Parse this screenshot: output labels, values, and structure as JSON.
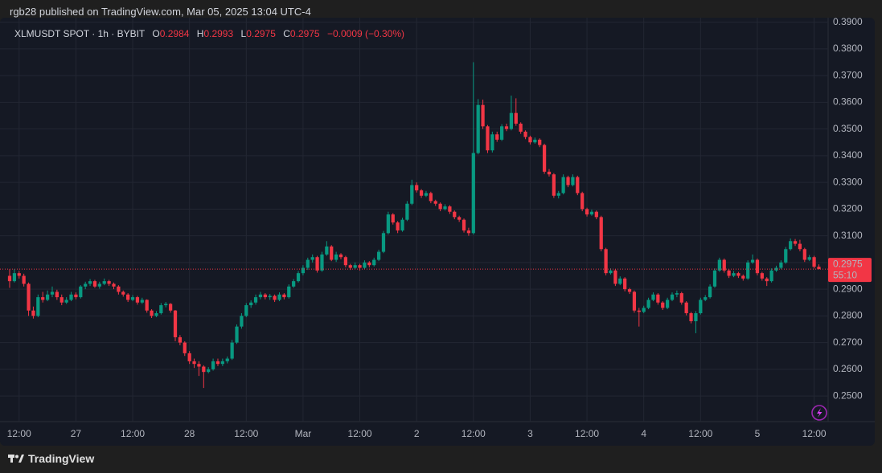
{
  "header": "rgb28 published on TradingView.com, Mar 05, 2025 13:04 UTC-4",
  "footer_logo": "TradingView",
  "chart_data": {
    "type": "candlestick",
    "symbol": "XLMUSDT SPOT · 1h · BYBIT",
    "ohlc_labels": [
      "O",
      "H",
      "L",
      "C"
    ],
    "change": "−0.0009 (−0.30%)",
    "countdown": "55:10",
    "up_color": "#089981",
    "down_color": "#f23645",
    "grid": true,
    "ylim": [
      0.2404,
      0.3917
    ],
    "yticks": [
      {
        "value": 0.25,
        "label": "0.2500"
      },
      {
        "value": 0.26,
        "label": "0.2600"
      },
      {
        "value": 0.27,
        "label": "0.2700"
      },
      {
        "value": 0.28,
        "label": "0.2800"
      },
      {
        "value": 0.29,
        "label": "0.2900"
      },
      {
        "value": 0.3,
        "label": "0.3000"
      },
      {
        "value": 0.31,
        "label": "0.3100"
      },
      {
        "value": 0.32,
        "label": "0.3200"
      },
      {
        "value": 0.33,
        "label": "0.3300"
      },
      {
        "value": 0.34,
        "label": "0.3400"
      },
      {
        "value": 0.35,
        "label": "0.3500"
      },
      {
        "value": 0.36,
        "label": "0.3600"
      },
      {
        "value": 0.37,
        "label": "0.3700"
      },
      {
        "value": 0.38,
        "label": "0.3800"
      },
      {
        "value": 0.39,
        "label": "0.3900"
      }
    ],
    "xlim": [
      -2.04,
      172.96
    ],
    "xticks": [
      {
        "value": 2,
        "label": "12:00"
      },
      {
        "value": 14,
        "label": "27"
      },
      {
        "value": 26,
        "label": "12:00"
      },
      {
        "value": 38,
        "label": "28"
      },
      {
        "value": 50,
        "label": "12:00"
      },
      {
        "value": 62,
        "label": "Mar"
      },
      {
        "value": 74,
        "label": "12:00"
      },
      {
        "value": 86,
        "label": "2"
      },
      {
        "value": 98,
        "label": "12:00"
      },
      {
        "value": 110,
        "label": "3"
      },
      {
        "value": 122,
        "label": "12:00"
      },
      {
        "value": 134,
        "label": "4"
      },
      {
        "value": 146,
        "label": "12:00"
      },
      {
        "value": 158,
        "label": "5"
      },
      {
        "value": 170,
        "label": "12:00"
      }
    ],
    "candles": [
      [
        0.295,
        0.2975,
        0.2905,
        0.293
      ],
      [
        0.293,
        0.2975,
        0.2925,
        0.296
      ],
      [
        0.296,
        0.2968,
        0.294,
        0.295
      ],
      [
        0.295,
        0.2958,
        0.291,
        0.292
      ],
      [
        0.292,
        0.2925,
        0.28,
        0.282
      ],
      [
        0.282,
        0.2835,
        0.279,
        0.28
      ],
      [
        0.28,
        0.288,
        0.2795,
        0.287
      ],
      [
        0.287,
        0.289,
        0.285,
        0.286
      ],
      [
        0.286,
        0.2895,
        0.2855,
        0.288
      ],
      [
        0.288,
        0.291,
        0.287,
        0.289
      ],
      [
        0.289,
        0.2898,
        0.286,
        0.287
      ],
      [
        0.287,
        0.288,
        0.284,
        0.285
      ],
      [
        0.285,
        0.287,
        0.2845,
        0.286
      ],
      [
        0.286,
        0.289,
        0.2855,
        0.288
      ],
      [
        0.288,
        0.2888,
        0.2862,
        0.287
      ],
      [
        0.287,
        0.2915,
        0.2865,
        0.291
      ],
      [
        0.291,
        0.2928,
        0.29,
        0.292
      ],
      [
        0.292,
        0.2938,
        0.2912,
        0.293
      ],
      [
        0.293,
        0.2935,
        0.2905,
        0.291
      ],
      [
        0.291,
        0.2928,
        0.2902,
        0.292
      ],
      [
        0.292,
        0.294,
        0.2915,
        0.293
      ],
      [
        0.293,
        0.2935,
        0.2912,
        0.292
      ],
      [
        0.292,
        0.2925,
        0.29,
        0.291
      ],
      [
        0.291,
        0.2915,
        0.288,
        0.289
      ],
      [
        0.289,
        0.2895,
        0.2872,
        0.288
      ],
      [
        0.288,
        0.2885,
        0.2852,
        0.286
      ],
      [
        0.286,
        0.2878,
        0.2855,
        0.287
      ],
      [
        0.287,
        0.2875,
        0.2842,
        0.285
      ],
      [
        0.285,
        0.2868,
        0.2845,
        0.286
      ],
      [
        0.286,
        0.2862,
        0.2812,
        0.282
      ],
      [
        0.282,
        0.2825,
        0.2792,
        0.28
      ],
      [
        0.28,
        0.2818,
        0.2795,
        0.281
      ],
      [
        0.281,
        0.2848,
        0.2805,
        0.284
      ],
      [
        0.284,
        0.2852,
        0.2832,
        0.2845
      ],
      [
        0.2845,
        0.2848,
        0.2812,
        0.282
      ],
      [
        0.282,
        0.2822,
        0.2705,
        0.272
      ],
      [
        0.272,
        0.2728,
        0.269,
        0.27
      ],
      [
        0.27,
        0.2705,
        0.265,
        0.266
      ],
      [
        0.266,
        0.2668,
        0.262,
        0.263
      ],
      [
        0.263,
        0.264,
        0.2605,
        0.262
      ],
      [
        0.262,
        0.263,
        0.2575,
        0.261
      ],
      [
        0.261,
        0.2615,
        0.253,
        0.259
      ],
      [
        0.259,
        0.2608,
        0.2585,
        0.26
      ],
      [
        0.26,
        0.264,
        0.2595,
        0.263
      ],
      [
        0.263,
        0.264,
        0.2612,
        0.262
      ],
      [
        0.262,
        0.264,
        0.2612,
        0.263
      ],
      [
        0.263,
        0.2648,
        0.2622,
        0.264
      ],
      [
        0.264,
        0.271,
        0.2635,
        0.27
      ],
      [
        0.27,
        0.2768,
        0.2695,
        0.276
      ],
      [
        0.276,
        0.281,
        0.2752,
        0.28
      ],
      [
        0.28,
        0.2848,
        0.2795,
        0.284
      ],
      [
        0.284,
        0.2858,
        0.283,
        0.285
      ],
      [
        0.285,
        0.288,
        0.2842,
        0.287
      ],
      [
        0.287,
        0.289,
        0.2862,
        0.288
      ],
      [
        0.288,
        0.2885,
        0.2862,
        0.287
      ],
      [
        0.287,
        0.2882,
        0.286,
        0.2875
      ],
      [
        0.2875,
        0.288,
        0.2852,
        0.286
      ],
      [
        0.286,
        0.2888,
        0.2855,
        0.288
      ],
      [
        0.288,
        0.2885,
        0.2862,
        0.287
      ],
      [
        0.287,
        0.2918,
        0.2865,
        0.291
      ],
      [
        0.291,
        0.2938,
        0.2905,
        0.293
      ],
      [
        0.293,
        0.2968,
        0.2925,
        0.296
      ],
      [
        0.296,
        0.299,
        0.2952,
        0.298
      ],
      [
        0.298,
        0.3018,
        0.2972,
        0.301
      ],
      [
        0.301,
        0.303,
        0.3,
        0.302
      ],
      [
        0.302,
        0.3025,
        0.2962,
        0.297
      ],
      [
        0.297,
        0.304,
        0.2965,
        0.303
      ],
      [
        0.303,
        0.308,
        0.3025,
        0.306
      ],
      [
        0.306,
        0.3065,
        0.3005,
        0.301
      ],
      [
        0.301,
        0.304,
        0.3002,
        0.303
      ],
      [
        0.303,
        0.3035,
        0.3012,
        0.302
      ],
      [
        0.302,
        0.3025,
        0.2982,
        0.299
      ],
      [
        0.299,
        0.2995,
        0.2972,
        0.298
      ],
      [
        0.298,
        0.3,
        0.2975,
        0.299
      ],
      [
        0.299,
        0.2995,
        0.297,
        0.298
      ],
      [
        0.298,
        0.3008,
        0.2975,
        0.3
      ],
      [
        0.3,
        0.3005,
        0.2982,
        0.299
      ],
      [
        0.299,
        0.3018,
        0.2985,
        0.301
      ],
      [
        0.301,
        0.3048,
        0.3005,
        0.304
      ],
      [
        0.304,
        0.3118,
        0.3035,
        0.311
      ],
      [
        0.311,
        0.319,
        0.3105,
        0.318
      ],
      [
        0.318,
        0.3185,
        0.3142,
        0.315
      ],
      [
        0.315,
        0.3155,
        0.311,
        0.312
      ],
      [
        0.312,
        0.3168,
        0.3115,
        0.316
      ],
      [
        0.316,
        0.323,
        0.3155,
        0.322
      ],
      [
        0.322,
        0.331,
        0.3215,
        0.329
      ],
      [
        0.329,
        0.33,
        0.3262,
        0.327
      ],
      [
        0.327,
        0.3275,
        0.3242,
        0.325
      ],
      [
        0.325,
        0.3268,
        0.3245,
        0.326
      ],
      [
        0.326,
        0.3265,
        0.3222,
        0.323
      ],
      [
        0.323,
        0.3235,
        0.3212,
        0.322
      ],
      [
        0.322,
        0.3225,
        0.3192,
        0.32
      ],
      [
        0.32,
        0.3218,
        0.3195,
        0.321
      ],
      [
        0.321,
        0.3215,
        0.3182,
        0.319
      ],
      [
        0.319,
        0.3195,
        0.3162,
        0.317
      ],
      [
        0.317,
        0.3175,
        0.3152,
        0.316
      ],
      [
        0.316,
        0.3165,
        0.3112,
        0.312
      ],
      [
        0.312,
        0.313,
        0.31,
        0.311
      ],
      [
        0.311,
        0.375,
        0.3105,
        0.341
      ],
      [
        0.341,
        0.3612,
        0.3405,
        0.359
      ],
      [
        0.359,
        0.361,
        0.35,
        0.351
      ],
      [
        0.351,
        0.3515,
        0.341,
        0.342
      ],
      [
        0.342,
        0.349,
        0.3412,
        0.348
      ],
      [
        0.348,
        0.349,
        0.3452,
        0.346
      ],
      [
        0.346,
        0.3518,
        0.3455,
        0.351
      ],
      [
        0.351,
        0.352,
        0.3492,
        0.35
      ],
      [
        0.35,
        0.3625,
        0.3495,
        0.356
      ],
      [
        0.356,
        0.3615,
        0.3512,
        0.352
      ],
      [
        0.352,
        0.3525,
        0.3482,
        0.349
      ],
      [
        0.349,
        0.3495,
        0.3462,
        0.347
      ],
      [
        0.347,
        0.3475,
        0.3442,
        0.345
      ],
      [
        0.345,
        0.3468,
        0.3445,
        0.346
      ],
      [
        0.346,
        0.3465,
        0.3432,
        0.344
      ],
      [
        0.344,
        0.3445,
        0.3332,
        0.334
      ],
      [
        0.334,
        0.335,
        0.3322,
        0.333
      ],
      [
        0.333,
        0.3335,
        0.3242,
        0.325
      ],
      [
        0.325,
        0.3268,
        0.324,
        0.326
      ],
      [
        0.326,
        0.333,
        0.3255,
        0.332
      ],
      [
        0.332,
        0.3325,
        0.3282,
        0.329
      ],
      [
        0.329,
        0.333,
        0.3285,
        0.332
      ],
      [
        0.332,
        0.3325,
        0.3252,
        0.326
      ],
      [
        0.326,
        0.3265,
        0.3192,
        0.32
      ],
      [
        0.32,
        0.3205,
        0.3172,
        0.318
      ],
      [
        0.318,
        0.3198,
        0.3175,
        0.319
      ],
      [
        0.319,
        0.3195,
        0.3162,
        0.317
      ],
      [
        0.317,
        0.3175,
        0.3042,
        0.305
      ],
      [
        0.305,
        0.3055,
        0.2952,
        0.296
      ],
      [
        0.296,
        0.2978,
        0.2955,
        0.297
      ],
      [
        0.297,
        0.2975,
        0.2912,
        0.292
      ],
      [
        0.292,
        0.2948,
        0.2915,
        0.294
      ],
      [
        0.294,
        0.2945,
        0.2892,
        0.29
      ],
      [
        0.29,
        0.2905,
        0.2882,
        0.289
      ],
      [
        0.289,
        0.2895,
        0.2812,
        0.282
      ],
      [
        0.282,
        0.283,
        0.276,
        0.2815
      ],
      [
        0.2815,
        0.2838,
        0.281,
        0.283
      ],
      [
        0.283,
        0.2868,
        0.2825,
        0.286
      ],
      [
        0.286,
        0.2888,
        0.2855,
        0.288
      ],
      [
        0.288,
        0.2885,
        0.2842,
        0.285
      ],
      [
        0.285,
        0.2855,
        0.2822,
        0.283
      ],
      [
        0.283,
        0.2868,
        0.2825,
        0.286
      ],
      [
        0.286,
        0.2888,
        0.2855,
        0.288
      ],
      [
        0.288,
        0.2895,
        0.287,
        0.2885
      ],
      [
        0.2885,
        0.289,
        0.2842,
        0.285
      ],
      [
        0.285,
        0.2855,
        0.2802,
        0.281
      ],
      [
        0.281,
        0.2815,
        0.2772,
        0.278
      ],
      [
        0.278,
        0.2818,
        0.2735,
        0.281
      ],
      [
        0.281,
        0.2868,
        0.2805,
        0.286
      ],
      [
        0.286,
        0.2878,
        0.2855,
        0.287
      ],
      [
        0.287,
        0.2918,
        0.2865,
        0.291
      ],
      [
        0.291,
        0.2978,
        0.2905,
        0.297
      ],
      [
        0.297,
        0.3018,
        0.2965,
        0.301
      ],
      [
        0.301,
        0.3015,
        0.2962,
        0.297
      ],
      [
        0.297,
        0.2975,
        0.2942,
        0.295
      ],
      [
        0.295,
        0.2968,
        0.2945,
        0.296
      ],
      [
        0.296,
        0.2965,
        0.2942,
        0.295
      ],
      [
        0.295,
        0.2955,
        0.2932,
        0.294
      ],
      [
        0.294,
        0.3008,
        0.2935,
        0.3
      ],
      [
        0.3,
        0.303,
        0.2995,
        0.301
      ],
      [
        0.301,
        0.3015,
        0.2952,
        0.296
      ],
      [
        0.296,
        0.2965,
        0.2932,
        0.294
      ],
      [
        0.294,
        0.2945,
        0.2912,
        0.293
      ],
      [
        0.293,
        0.2978,
        0.2925,
        0.297
      ],
      [
        0.297,
        0.2988,
        0.2965,
        0.298
      ],
      [
        0.298,
        0.3008,
        0.2975,
        0.3
      ],
      [
        0.3,
        0.3058,
        0.2995,
        0.305
      ],
      [
        0.305,
        0.309,
        0.3045,
        0.308
      ],
      [
        0.308,
        0.3088,
        0.3062,
        0.307
      ],
      [
        0.307,
        0.3085,
        0.3042,
        0.305
      ],
      [
        0.305,
        0.3055,
        0.3002,
        0.301
      ],
      [
        0.301,
        0.3028,
        0.3005,
        0.302
      ],
      [
        0.302,
        0.3025,
        0.2978,
        0.2984
      ],
      [
        0.2984,
        0.2993,
        0.2975,
        0.2975
      ]
    ]
  }
}
